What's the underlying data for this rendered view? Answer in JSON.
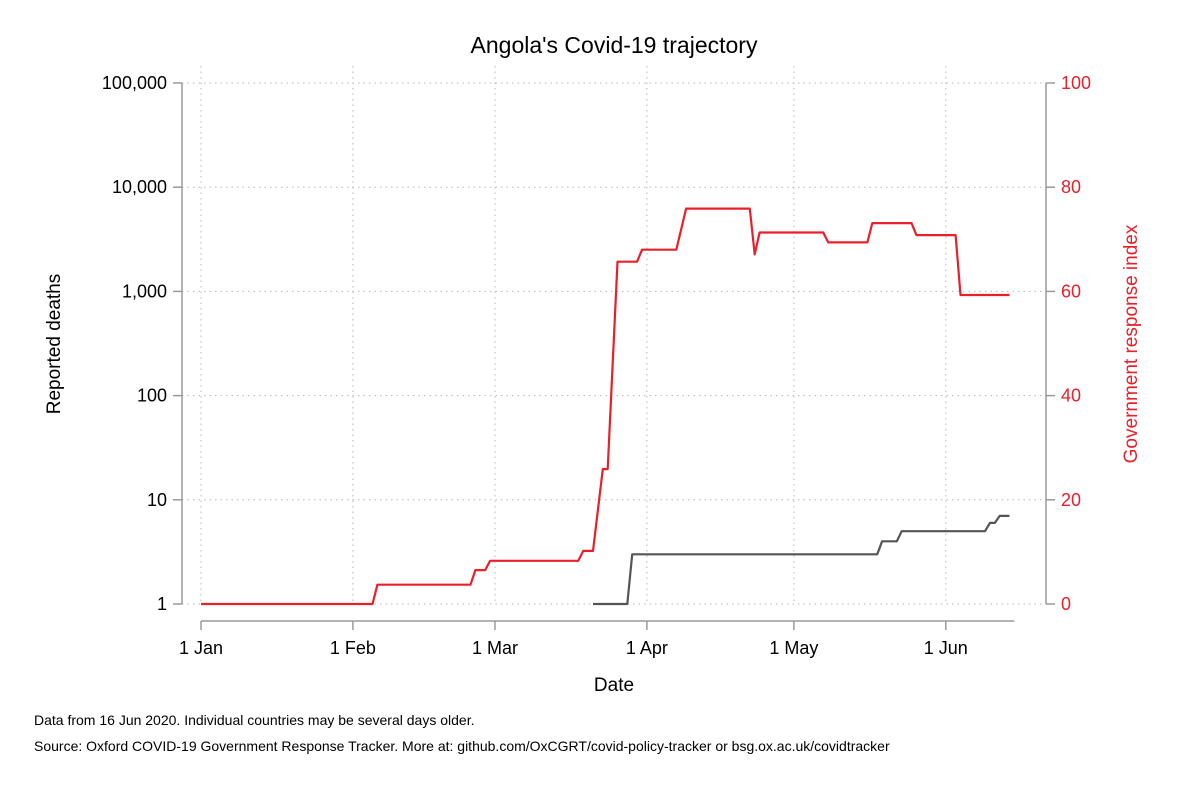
{
  "chart_data": {
    "type": "line",
    "title": "Angola's Covid-19 trajectory",
    "xlabel": "Date",
    "ylabel_left": "Reported deaths",
    "ylabel_right": "Government response index",
    "x_ticks": [
      "1 Jan",
      "1 Feb",
      "1 Mar",
      "1 Apr",
      "1 May",
      "1 Jun"
    ],
    "x_tick_days": [
      1,
      32,
      61,
      92,
      122,
      153
    ],
    "x_range_days": [
      1,
      167
    ],
    "left_axis": {
      "scale": "log",
      "ticks": [
        1,
        10,
        100,
        1000,
        10000,
        100000
      ],
      "tick_labels": [
        "1",
        "10",
        "100",
        "1,000",
        "10,000",
        "100,000"
      ],
      "ylim": [
        1,
        100000
      ]
    },
    "right_axis": {
      "scale": "linear",
      "ticks": [
        0,
        20,
        40,
        60,
        80,
        100
      ],
      "ylim": [
        0,
        100
      ],
      "color": "#e8202a"
    },
    "grid": "dotted",
    "series": [
      {
        "axis": "left",
        "color": "#555555",
        "points": [
          [
            81,
            1
          ],
          [
            88,
            1
          ],
          [
            89,
            3
          ],
          [
            139,
            3
          ],
          [
            140,
            4
          ],
          [
            143,
            4
          ],
          [
            144,
            5
          ],
          [
            161,
            5
          ],
          [
            162,
            6
          ],
          [
            163,
            6
          ],
          [
            164,
            7
          ],
          [
            166,
            7
          ]
        ]
      },
      {
        "axis": "right",
        "color": "#e8202a",
        "points": [
          [
            1,
            0
          ],
          [
            36,
            0
          ],
          [
            37,
            3.7
          ],
          [
            56,
            3.7
          ],
          [
            57,
            6.5
          ],
          [
            59,
            6.5
          ],
          [
            60,
            8.3
          ],
          [
            78,
            8.3
          ],
          [
            79,
            10.2
          ],
          [
            81,
            10.2
          ],
          [
            83,
            25.9
          ],
          [
            84,
            25.9
          ],
          [
            86,
            65.7
          ],
          [
            90,
            65.7
          ],
          [
            91,
            68.0
          ],
          [
            98,
            68.0
          ],
          [
            100,
            75.9
          ],
          [
            113,
            75.9
          ],
          [
            114,
            67.1
          ],
          [
            115,
            71.3
          ],
          [
            128,
            71.3
          ],
          [
            129,
            69.4
          ],
          [
            137,
            69.4
          ],
          [
            138,
            73.1
          ],
          [
            146,
            73.1
          ],
          [
            147,
            70.8
          ],
          [
            155,
            70.8
          ],
          [
            156,
            59.3
          ],
          [
            166,
            59.3
          ]
        ]
      }
    ]
  },
  "footnotes": {
    "line1": "Data from 16 Jun 2020. Individual countries may be several days older.",
    "line2": "Source: Oxford COVID-19 Government Response Tracker. More at: github.com/OxCGRT/covid-policy-tracker or bsg.ox.ac.uk/covidtracker"
  }
}
